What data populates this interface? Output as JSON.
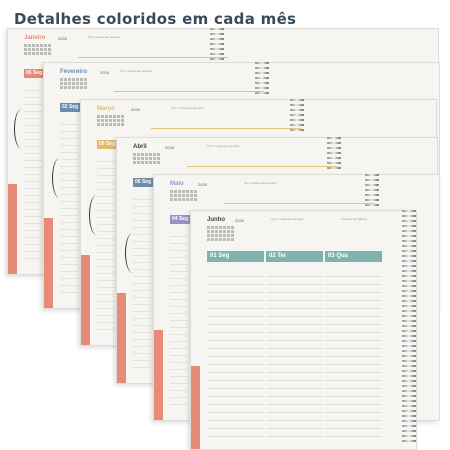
{
  "headline": "Detalhes coloridos em cada mês",
  "planners": [
    {
      "month": "Janeiro",
      "year": "2026",
      "color": "#e58b78",
      "day": "05 Seg",
      "note": "Top 3 metas da semana"
    },
    {
      "month": "Fevereiro",
      "year": "2026",
      "color": "#6c8fb3",
      "day": "02 Seg",
      "note": "Top 3 metas da semana"
    },
    {
      "month": "Março",
      "year": "2026",
      "color": "#e3b869",
      "day": "09 Seg",
      "note": "Top 3 metas da semana"
    },
    {
      "month": "Abril",
      "year": "2026",
      "color": "#6f8ea6",
      "day": "06 Seg",
      "note": "Top 3 metas da semana"
    },
    {
      "month": "Maio",
      "year": "2026",
      "color": "#9b93c7",
      "day": "04 Seg",
      "note": "Top 3 metas da semana"
    },
    {
      "month": "Junho",
      "year": "2026",
      "color": "#7fb3b0",
      "day": "01 Seg",
      "note": "Top 3 metas da semana"
    }
  ],
  "front": {
    "month": "Junho",
    "year": "2026",
    "tabs": [
      "01 Seg",
      "02 Ter",
      "03 Qua"
    ],
    "tab_color": "#7fb3b0",
    "note": "Top 3 metas da semana",
    "note2": "Controle de hábitos"
  }
}
